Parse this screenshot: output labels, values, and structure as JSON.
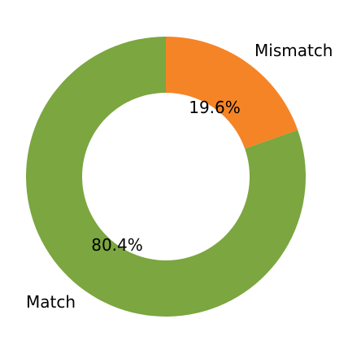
{
  "chart_data": {
    "type": "pie",
    "donut": true,
    "title": "",
    "categories": [
      "Mismatch",
      "Match"
    ],
    "values": [
      19.6,
      80.4
    ],
    "value_labels": [
      "19.6%",
      "80.4%"
    ],
    "colors": [
      "#f58426",
      "#7ba640"
    ],
    "start_angle_deg": 90,
    "direction": "clockwise",
    "legend": "none"
  }
}
